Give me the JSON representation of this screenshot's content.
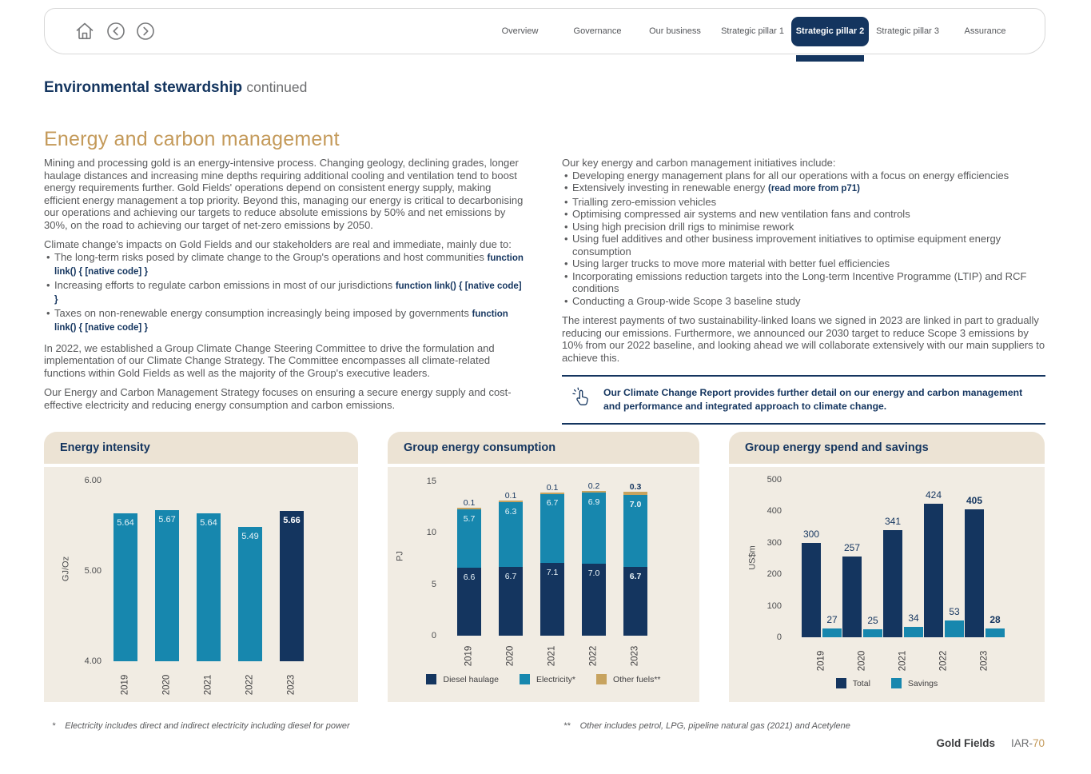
{
  "colors": {
    "navy": "#14355f",
    "teal": "#1787ae",
    "tan": "#c7a35f",
    "gold": "#c49a5a",
    "beigeHead": "#ece3d4",
    "beigeBody": "#f1ece3"
  },
  "nav": {
    "tabs": [
      {
        "label": "Overview",
        "active": false
      },
      {
        "label": "Governance",
        "active": false
      },
      {
        "label": "Our business",
        "active": false
      },
      {
        "label": "Strategic pillar 1",
        "active": false
      },
      {
        "label": "Strategic pillar 2",
        "active": true
      },
      {
        "label": "Strategic pillar 3",
        "active": false
      },
      {
        "label": "Assurance",
        "active": false
      }
    ]
  },
  "header": {
    "title": "Environmental stewardship",
    "continued": "continued"
  },
  "section": {
    "title": "Energy and carbon management"
  },
  "left_column": {
    "p1": "Mining and processing gold is an energy-intensive process. Changing geology, declining grades, longer haulage distances and increasing mine depths requiring additional cooling and ventilation tend to boost energy requirements further. Gold Fields' operations depend on consistent energy supply, making efficient energy management a top priority. Beyond this, managing our energy is critical to decarbonising our operations and achieving our targets to reduce absolute emissions by 50% and net emissions by 30%, on the road to achieving our target of net-zero emissions by 2050.",
    "p2_intro": "Climate change's impacts on Gold Fields and our stakeholders are real and immediate, mainly due to:",
    "bullets": [
      "The long-term risks posed by climate change to the Group's operations and host communities",
      "Increasing efforts to regulate carbon emissions in most of our jurisdictions",
      "Taxes on non-renewable energy consumption increasingly being imposed by governments"
    ],
    "p3": "In 2022, we established a Group Climate Change Steering Committee to drive the formulation and implementation of our Climate Change Strategy. The Committee encompasses all climate-related functions within Gold Fields as well as the majority of the Group's executive leaders.",
    "p4": "Our Energy and Carbon Management Strategy focuses on ensuring a secure energy supply and cost-effective electricity and reducing energy consumption and carbon emissions."
  },
  "right_column": {
    "intro": "Our key energy and carbon management initiatives include:",
    "bullets": [
      {
        "text": "Developing energy management plans for all our operations with a focus on energy efficiencies"
      },
      {
        "text": "Extensively investing in renewable energy",
        "link": "(read more from p71)"
      },
      {
        "text": "Trialling zero-emission vehicles"
      },
      {
        "text": "Optimising compressed air systems and new ventilation fans and controls"
      },
      {
        "text": "Using high precision drill rigs to minimise rework"
      },
      {
        "text": "Using fuel additives and other business improvement initiatives to optimise equipment energy consumption"
      },
      {
        "text": "Using larger trucks to move more material with better fuel efficiencies"
      },
      {
        "text": "Incorporating emissions reduction targets into the Long-term Incentive Programme (LTIP) and RCF conditions"
      },
      {
        "text": "Conducting a Group-wide Scope 3 baseline study"
      }
    ],
    "paragraph": "The interest payments of two sustainability-linked loans we signed in 2023 are linked in part to gradually reducing our emissions. Furthermore, we announced our 2030 target to reduce Scope 3 emissions by 10% from our 2022 baseline, and looking ahead we will collaborate extensively with our main suppliers to achieve this.",
    "callout": "Our Climate Change Report provides further detail on our energy and carbon management and performance and integrated approach to climate change."
  },
  "chart_data": [
    {
      "type": "bar",
      "title": "Energy intensity",
      "ylabel": "GJ/Oz",
      "xlabel": "",
      "ylim": [
        4.0,
        6.0
      ],
      "yticks": [
        {
          "v": 6,
          "label": "6.00"
        },
        {
          "v": 5,
          "label": "5.00"
        },
        {
          "v": 4,
          "label": "4.00"
        }
      ],
      "categories": [
        "2019",
        "2020",
        "2021",
        "2022",
        "2023"
      ],
      "values": [
        5.64,
        5.67,
        5.64,
        5.49,
        5.66
      ],
      "value_labels": [
        "5.64",
        "5.67",
        "5.64",
        "5.49",
        "5.66"
      ],
      "bar_colors": [
        "teal",
        "teal",
        "teal",
        "teal",
        "navy"
      ],
      "emphasis_index": 4,
      "grid": false,
      "legend": null
    },
    {
      "type": "bar",
      "stacked": true,
      "title": "Group energy consumption",
      "ylabel": "PJ",
      "xlabel": "",
      "ylim": [
        0,
        15
      ],
      "yticks": [
        {
          "v": 15,
          "label": "15"
        },
        {
          "v": 10,
          "label": "10"
        },
        {
          "v": 5,
          "label": "5"
        },
        {
          "v": 0,
          "label": "0"
        }
      ],
      "categories": [
        "2019",
        "2020",
        "2021",
        "2022",
        "2023"
      ],
      "series": [
        {
          "name": "Diesel haulage",
          "color": "navy",
          "values": [
            6.6,
            6.7,
            7.1,
            7.0,
            6.7
          ]
        },
        {
          "name": "Electricity*",
          "color": "teal",
          "values": [
            5.7,
            6.3,
            6.7,
            6.9,
            7.0
          ]
        },
        {
          "name": "Other fuels**",
          "color": "tan",
          "values": [
            0.1,
            0.1,
            0.1,
            0.2,
            0.3
          ]
        }
      ],
      "emphasis_index": 4,
      "grid": false,
      "legend_position": "bottom"
    },
    {
      "type": "bar",
      "grouped": true,
      "title": "Group energy spend and savings",
      "ylabel": "US$m",
      "xlabel": "",
      "ylim": [
        0,
        500
      ],
      "yticks": [
        {
          "v": 500,
          "label": "500"
        },
        {
          "v": 400,
          "label": "400"
        },
        {
          "v": 300,
          "label": "300"
        },
        {
          "v": 200,
          "label": "200"
        },
        {
          "v": 100,
          "label": "100"
        },
        {
          "v": 0,
          "label": "0"
        }
      ],
      "categories": [
        "2019",
        "2020",
        "2021",
        "2022",
        "2023"
      ],
      "series": [
        {
          "name": "Total",
          "color": "navy",
          "values": [
            300,
            257,
            341,
            424,
            405
          ]
        },
        {
          "name": "Savings",
          "color": "teal",
          "values": [
            27,
            25,
            34,
            53,
            28
          ]
        }
      ],
      "emphasis_index": 4,
      "grid": false,
      "legend_position": "bottom"
    }
  ],
  "footnotes": [
    {
      "marker": "*",
      "text": "Electricity includes direct and indirect electricity including diesel for power"
    },
    {
      "marker": "**",
      "text": "Other includes petrol, LPG, pipeline natural gas (2021) and Acetylene"
    }
  ],
  "footer": {
    "brand": "Gold Fields",
    "page_prefix": "IAR-",
    "page_number": "70"
  }
}
